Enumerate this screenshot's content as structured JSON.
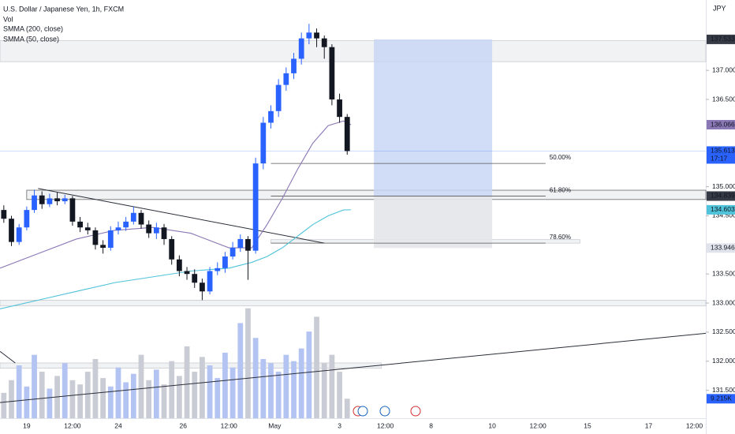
{
  "chart_data": {
    "type": "candlestick",
    "title": "U.S. Dollar / Japanese Yen, 1h, FXCM",
    "volume_name": "Vol",
    "currency": "JPY",
    "countdown": "17:17",
    "up_color": "#2962ff",
    "down_color": "#131722",
    "volume_up_color": "#b3c3f2",
    "volume_down_color": "#c9ccd4",
    "x": [
      1,
      3,
      5,
      7,
      9,
      11,
      13,
      15,
      17,
      19,
      21,
      23,
      25,
      27,
      29,
      31,
      33,
      35,
      37,
      39,
      41,
      43,
      45,
      47,
      49,
      51,
      53,
      55,
      57,
      59,
      61,
      63,
      65,
      67,
      69,
      71,
      73,
      75,
      77,
      79,
      81,
      83,
      85,
      87,
      89,
      91
    ],
    "open": [
      134.6,
      134.45,
      134.05,
      134.3,
      134.6,
      134.85,
      134.7,
      134.8,
      134.75,
      134.8,
      134.4,
      134.3,
      134.25,
      134.0,
      133.95,
      134.25,
      134.3,
      134.4,
      134.55,
      134.35,
      134.2,
      134.3,
      134.1,
      133.75,
      133.55,
      133.5,
      133.35,
      133.2,
      133.55,
      133.6,
      133.8,
      133.95,
      134.1,
      133.9,
      135.4,
      136.1,
      136.3,
      136.75,
      136.95,
      137.2,
      137.55,
      137.65,
      137.55,
      137.4,
      136.5,
      136.2
    ],
    "high": [
      134.68,
      134.5,
      134.36,
      134.66,
      134.95,
      134.92,
      134.88,
      134.9,
      134.86,
      134.84,
      134.48,
      134.38,
      134.3,
      134.08,
      134.32,
      134.4,
      134.48,
      134.66,
      134.6,
      134.42,
      134.38,
      134.36,
      134.15,
      133.82,
      133.62,
      133.58,
      133.42,
      133.62,
      133.7,
      133.88,
      134.05,
      134.18,
      134.15,
      135.5,
      136.2,
      136.4,
      136.85,
      137.05,
      137.3,
      137.65,
      137.8,
      137.72,
      137.6,
      137.45,
      136.6,
      136.25
    ],
    "low": [
      134.38,
      133.98,
      134.0,
      134.25,
      134.55,
      134.62,
      134.65,
      134.68,
      134.7,
      134.33,
      134.22,
      134.18,
      133.92,
      133.85,
      133.9,
      134.18,
      134.24,
      134.35,
      134.28,
      134.12,
      134.1,
      134.0,
      133.66,
      133.46,
      133.4,
      133.26,
      133.05,
      133.15,
      133.48,
      133.52,
      133.75,
      133.88,
      133.4,
      133.85,
      135.3,
      136.0,
      136.2,
      136.65,
      136.85,
      137.1,
      137.45,
      137.4,
      137.2,
      136.4,
      136.1,
      135.55
    ],
    "close": [
      134.45,
      134.05,
      134.3,
      134.6,
      134.85,
      134.7,
      134.8,
      134.75,
      134.8,
      134.4,
      134.3,
      134.25,
      134.0,
      133.95,
      134.25,
      134.3,
      134.4,
      134.55,
      134.35,
      134.2,
      134.3,
      134.1,
      133.75,
      133.55,
      133.5,
      133.35,
      133.2,
      133.55,
      133.6,
      133.8,
      133.95,
      134.1,
      133.9,
      135.4,
      136.1,
      136.3,
      136.75,
      136.95,
      137.2,
      137.55,
      137.65,
      137.55,
      137.4,
      136.5,
      136.2,
      135.613
    ],
    "volume": [
      12000,
      18000,
      25000,
      15000,
      30000,
      22000,
      14000,
      20000,
      26000,
      18000,
      16000,
      22000,
      28000,
      19000,
      15000,
      24000,
      17000,
      21000,
      30000,
      18000,
      23000,
      16000,
      27000,
      20000,
      34000,
      22000,
      29000,
      25000,
      19000,
      31000,
      24000,
      45000,
      52000,
      38000,
      28000,
      26000,
      22000,
      30000,
      27000,
      33000,
      41000,
      48000,
      26000,
      30000,
      22000,
      9215
    ],
    "volume_label": "9.215K",
    "vlim": [
      0,
      56000
    ],
    "smma": [
      {
        "name": "SMMA (200, close)",
        "color": "#4fc3d9",
        "x": [
          0,
          10,
          20,
          30,
          40,
          50,
          60,
          66,
          70,
          74,
          78,
          82,
          86,
          90,
          92
        ],
        "values": [
          132.9,
          133.05,
          133.2,
          133.35,
          133.45,
          133.55,
          133.6,
          133.7,
          133.8,
          133.95,
          134.15,
          134.35,
          134.5,
          134.6,
          134.603
        ]
      },
      {
        "name": "SMMA (50, close)",
        "color": "#8a77b5",
        "x": [
          0,
          10,
          20,
          30,
          40,
          50,
          60,
          66,
          70,
          74,
          78,
          82,
          86,
          90,
          92
        ],
        "values": [
          133.6,
          133.85,
          134.1,
          134.25,
          134.3,
          134.2,
          133.95,
          133.95,
          134.35,
          134.8,
          135.3,
          135.75,
          136.05,
          136.13,
          136.066
        ]
      }
    ],
    "zones": [
      {
        "x": [
          0,
          185
        ],
        "y": [
          137.15,
          137.51
        ]
      },
      {
        "x": [
          7,
          185
        ],
        "y": [
          134.78,
          134.94
        ]
      },
      {
        "x": [
          71,
          152
        ],
        "y": [
          134.03,
          134.09
        ]
      },
      {
        "x": [
          0,
          185
        ],
        "y": [
          132.95,
          133.05
        ]
      },
      {
        "x": [
          0,
          100
        ],
        "y": [
          131.88,
          131.97
        ]
      }
    ],
    "position": {
      "x": [
        98,
        129
      ],
      "entry": 134.839,
      "target": 137.533,
      "stop": 133.946,
      "profit_color": "#c9d6f5",
      "loss_color": "#e4e5e9"
    },
    "fib_x": [
      71,
      143
    ],
    "fibs": [
      {
        "price": 135.4,
        "label": "50.00%"
      },
      {
        "price": 134.84,
        "label": "61.80%"
      },
      {
        "price": 134.03,
        "label": "78.60%"
      }
    ],
    "trendlines": [
      {
        "x": [
          10,
          85
        ],
        "y": [
          134.97,
          134.03
        ]
      },
      {
        "x": [
          0,
          185
        ],
        "y": [
          131.29,
          132.48
        ]
      },
      {
        "x": [
          0,
          4
        ],
        "y": [
          132.17,
          131.97
        ]
      }
    ],
    "xlim": [
      0,
      185
    ],
    "ylim": [
      131.02,
      138.21
    ],
    "xticks": [
      {
        "value": 7,
        "label": "19"
      },
      {
        "value": 19,
        "label": "12:00"
      },
      {
        "value": 31,
        "label": "24"
      },
      {
        "value": 48,
        "label": "26"
      },
      {
        "value": 60,
        "label": "12:00"
      },
      {
        "value": 72,
        "label": "May"
      },
      {
        "value": 89,
        "label": "3"
      },
      {
        "value": 101,
        "label": "12:00"
      },
      {
        "value": 113,
        "label": "8"
      },
      {
        "value": 129,
        "label": "10"
      },
      {
        "value": 141,
        "label": "12:00"
      },
      {
        "value": 154,
        "label": "15"
      },
      {
        "value": 170,
        "label": "17"
      },
      {
        "value": 182,
        "label": "12:00"
      }
    ],
    "yticks": [
      {
        "value": 131.5,
        "label": "131.500"
      },
      {
        "value": 132,
        "label": "132.000"
      },
      {
        "value": 132.5,
        "label": "132.500"
      },
      {
        "value": 133,
        "label": "133.000"
      },
      {
        "value": 133.5,
        "label": "133.500"
      },
      {
        "value": 134.5,
        "label": "134.500"
      },
      {
        "value": 135,
        "label": "135.000"
      },
      {
        "value": 136.5,
        "label": "136.500"
      },
      {
        "value": 137,
        "label": "137.000"
      }
    ],
    "grid": false
  }
}
